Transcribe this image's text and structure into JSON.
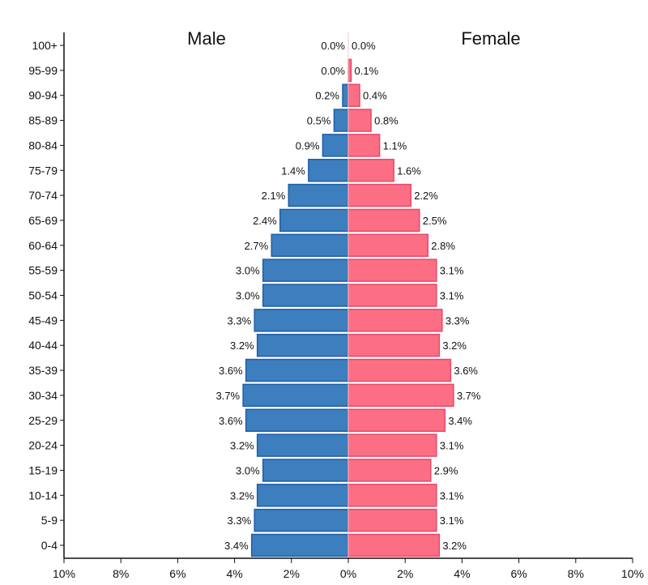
{
  "chart_data": {
    "type": "bar",
    "subtype": "population-pyramid",
    "orientation": "horizontal",
    "categories": [
      "0-4",
      "5-9",
      "10-14",
      "15-19",
      "20-24",
      "25-29",
      "30-34",
      "35-39",
      "40-44",
      "45-49",
      "50-54",
      "55-59",
      "60-64",
      "65-69",
      "70-74",
      "75-79",
      "80-84",
      "85-89",
      "90-94",
      "95-99",
      "100+"
    ],
    "series": [
      {
        "name": "Male",
        "side": "left",
        "color": "#3d7ebe",
        "stroke": "#1f5fa8",
        "values": [
          3.4,
          3.3,
          3.2,
          3.0,
          3.2,
          3.6,
          3.7,
          3.6,
          3.2,
          3.3,
          3.0,
          3.0,
          2.7,
          2.4,
          2.1,
          1.4,
          0.9,
          0.5,
          0.2,
          0.0,
          0.0
        ],
        "labels": [
          "3.4%",
          "3.3%",
          "3.2%",
          "3.0%",
          "3.2%",
          "3.6%",
          "3.7%",
          "3.6%",
          "3.2%",
          "3.3%",
          "3.0%",
          "3.0%",
          "2.7%",
          "2.4%",
          "2.1%",
          "1.4%",
          "0.9%",
          "0.5%",
          "0.2%",
          "0.0%",
          "0.0%"
        ]
      },
      {
        "name": "Female",
        "side": "right",
        "color": "#fc6e84",
        "stroke": "#e8496a",
        "values": [
          3.2,
          3.1,
          3.1,
          2.9,
          3.1,
          3.4,
          3.7,
          3.6,
          3.2,
          3.3,
          3.1,
          3.1,
          2.8,
          2.5,
          2.2,
          1.6,
          1.1,
          0.8,
          0.4,
          0.1,
          0.0
        ],
        "labels": [
          "3.2%",
          "3.1%",
          "3.1%",
          "2.9%",
          "3.1%",
          "3.4%",
          "3.7%",
          "3.6%",
          "3.2%",
          "3.3%",
          "3.1%",
          "3.1%",
          "2.8%",
          "2.5%",
          "2.2%",
          "1.6%",
          "1.1%",
          "0.8%",
          "0.4%",
          "0.1%",
          "0.0%"
        ]
      }
    ],
    "xlim": [
      -10,
      10
    ],
    "x_ticks": [
      -10,
      -8,
      -6,
      -4,
      -2,
      0,
      2,
      4,
      6,
      8,
      10
    ],
    "x_tick_labels": [
      "10%",
      "8%",
      "6%",
      "4%",
      "2%",
      "0%",
      "2%",
      "4%",
      "6%",
      "8%",
      "10%"
    ],
    "male_title": "Male",
    "female_title": "Female",
    "grid": false
  }
}
